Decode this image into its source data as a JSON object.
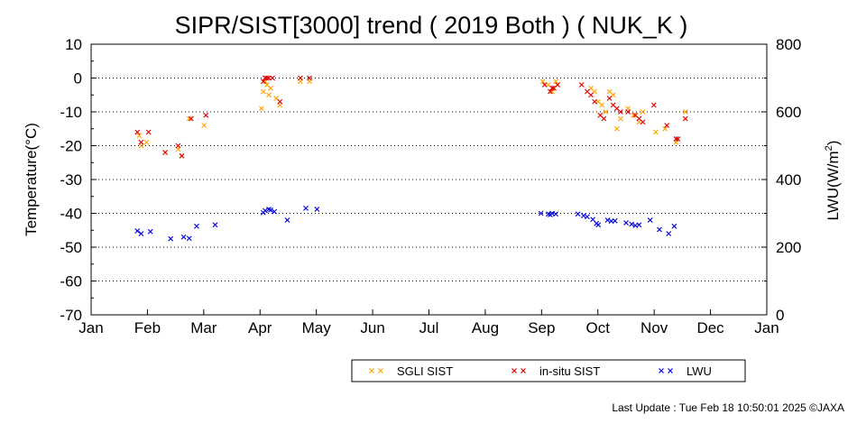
{
  "chart_data": {
    "type": "scatter",
    "title": "SIPR/SIST[3000] trend ( 2019 Both ) ( NUK_K )",
    "ylabel_left": "Temperature(°C)",
    "ylabel_right_main": "LWU(W/m",
    "ylabel_right_sup": "2",
    "ylabel_right_end": ")",
    "ylim_left": [
      -70,
      10
    ],
    "ylim_right": [
      0,
      800
    ],
    "yticks_left": [
      10,
      0,
      -10,
      -20,
      -30,
      -40,
      -50,
      -60,
      -70
    ],
    "yticks_right": [
      800,
      600,
      400,
      200,
      0
    ],
    "months": [
      "Jan",
      "Feb",
      "Mar",
      "Apr",
      "May",
      "Jun",
      "Jul",
      "Aug",
      "Sep",
      "Oct",
      "Nov",
      "Dec",
      "Jan"
    ],
    "xlim_days": [
      0,
      365
    ],
    "grid": "horizontal dotted",
    "legend_placement": "bottom",
    "legend": [
      {
        "label": "SGLI SIST",
        "color": "#ffa500"
      },
      {
        "label": "in-situ SIST",
        "color": "#e00000"
      },
      {
        "label": "LWU",
        "color": "#0000dd"
      }
    ],
    "series": [
      {
        "name": "SGLI SIST",
        "axis": "left",
        "color": "#ffa500",
        "points": [
          [
            26,
            -17
          ],
          [
            27,
            -20
          ],
          [
            30,
            -19
          ],
          [
            40,
            -22
          ],
          [
            47,
            -21
          ],
          [
            49,
            -23
          ],
          [
            53,
            -12
          ],
          [
            61,
            -14
          ],
          [
            92,
            -9
          ],
          [
            93,
            -4
          ],
          [
            94,
            -1
          ],
          [
            95,
            -2
          ],
          [
            96,
            -5
          ],
          [
            97,
            -3
          ],
          [
            100,
            -6
          ],
          [
            102,
            -8
          ],
          [
            113,
            -1
          ],
          [
            118,
            -1
          ],
          [
            244,
            -1
          ],
          [
            247,
            -2
          ],
          [
            249,
            -4
          ],
          [
            250,
            -3
          ],
          [
            251,
            -1
          ],
          [
            252,
            -2
          ],
          [
            270,
            -3
          ],
          [
            272,
            -4
          ],
          [
            274,
            -7
          ],
          [
            276,
            -8
          ],
          [
            278,
            -10
          ],
          [
            280,
            -4
          ],
          [
            282,
            -5
          ],
          [
            284,
            -15
          ],
          [
            286,
            -12
          ],
          [
            290,
            -9
          ],
          [
            293,
            -11
          ],
          [
            296,
            -13
          ],
          [
            298,
            -10
          ],
          [
            305,
            -16
          ],
          [
            310,
            -15
          ],
          [
            316,
            -19
          ],
          [
            321,
            -10
          ]
        ]
      },
      {
        "name": "in-situ SIST",
        "axis": "left",
        "color": "#e00000",
        "points": [
          [
            25,
            -16
          ],
          [
            27,
            -19
          ],
          [
            31,
            -16
          ],
          [
            40,
            -22
          ],
          [
            47,
            -20
          ],
          [
            49,
            -23
          ],
          [
            54,
            -12
          ],
          [
            62,
            -11
          ],
          [
            93,
            -1
          ],
          [
            94,
            0
          ],
          [
            95,
            0
          ],
          [
            96,
            0
          ],
          [
            98,
            0
          ],
          [
            102,
            -7
          ],
          [
            113,
            0
          ],
          [
            118,
            0
          ],
          [
            245,
            -2
          ],
          [
            248,
            -4
          ],
          [
            249,
            -3
          ],
          [
            250,
            -3
          ],
          [
            252,
            -2
          ],
          [
            265,
            -2
          ],
          [
            268,
            -4
          ],
          [
            270,
            -5
          ],
          [
            272,
            -7
          ],
          [
            275,
            -11
          ],
          [
            277,
            -12
          ],
          [
            280,
            -6
          ],
          [
            282,
            -8
          ],
          [
            284,
            -9
          ],
          [
            286,
            -10
          ],
          [
            290,
            -10
          ],
          [
            294,
            -11
          ],
          [
            296,
            -12
          ],
          [
            298,
            -13
          ],
          [
            304,
            -8
          ],
          [
            311,
            -14
          ],
          [
            316,
            -18
          ],
          [
            317,
            -18
          ],
          [
            321,
            -12
          ]
        ]
      },
      {
        "name": "LWU",
        "axis": "right",
        "color": "#0000dd",
        "points": [
          [
            25,
            248
          ],
          [
            27,
            240
          ],
          [
            32,
            246
          ],
          [
            43,
            225
          ],
          [
            50,
            230
          ],
          [
            53,
            226
          ],
          [
            57,
            262
          ],
          [
            67,
            266
          ],
          [
            93,
            302
          ],
          [
            94,
            308
          ],
          [
            96,
            312
          ],
          [
            97,
            310
          ],
          [
            99,
            305
          ],
          [
            106,
            280
          ],
          [
            116,
            315
          ],
          [
            122,
            312
          ],
          [
            243,
            300
          ],
          [
            247,
            298
          ],
          [
            248,
            296
          ],
          [
            249,
            300
          ],
          [
            251,
            298
          ],
          [
            263,
            298
          ],
          [
            266,
            293
          ],
          [
            268,
            290
          ],
          [
            271,
            282
          ],
          [
            273,
            270
          ],
          [
            274,
            266
          ],
          [
            279,
            280
          ],
          [
            281,
            277
          ],
          [
            283,
            278
          ],
          [
            289,
            272
          ],
          [
            292,
            268
          ],
          [
            294,
            264
          ],
          [
            296,
            266
          ],
          [
            302,
            280
          ],
          [
            307,
            252
          ],
          [
            312,
            240
          ],
          [
            315,
            262
          ]
        ]
      }
    ]
  },
  "footer": {
    "last_update": "Last Update : Tue Feb 18 10:50:01 2025  ©JAXA"
  }
}
